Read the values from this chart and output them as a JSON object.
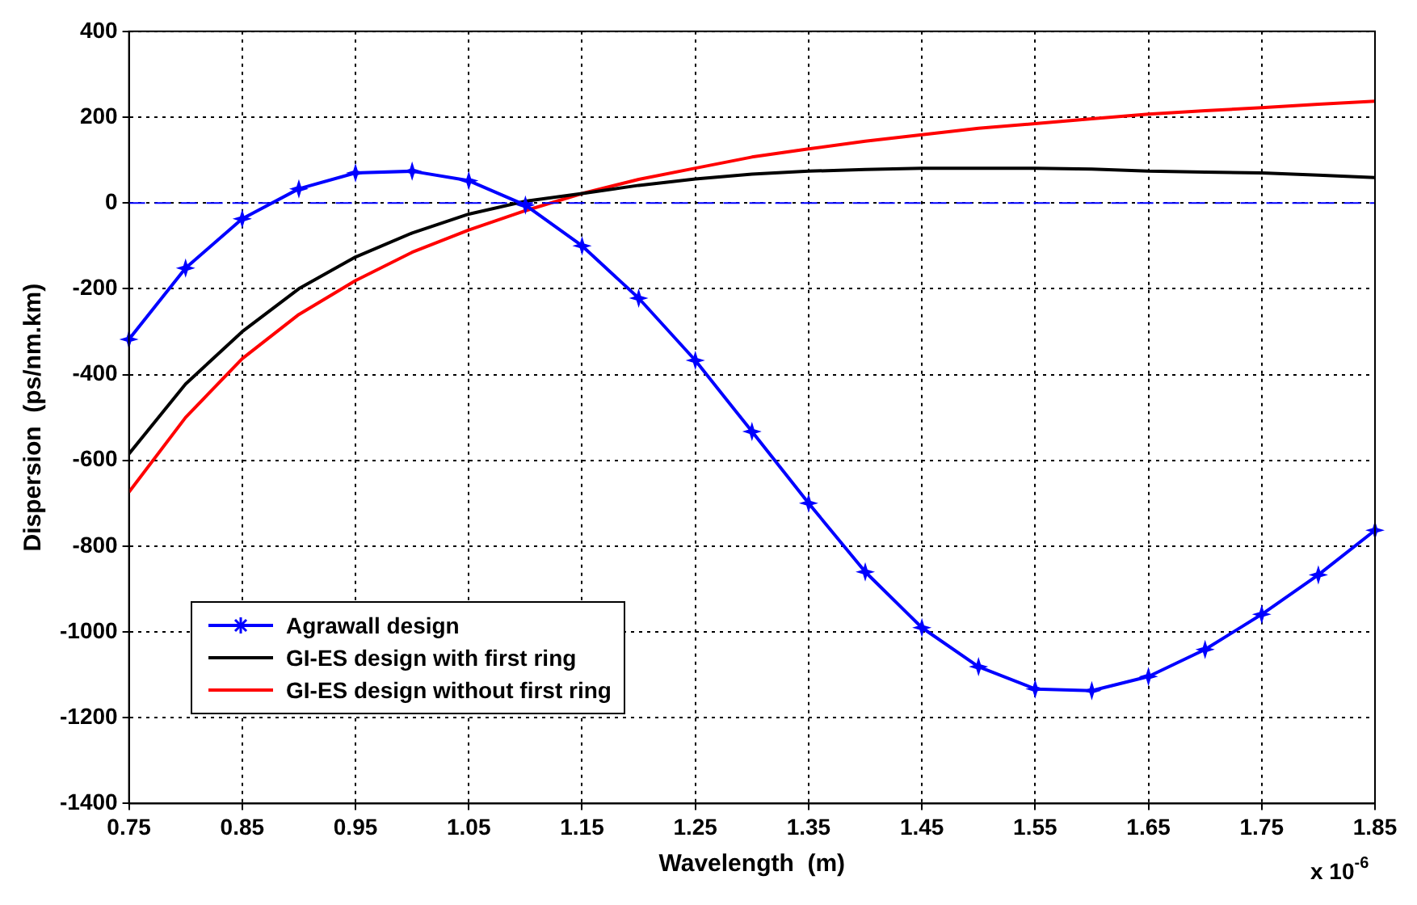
{
  "chart_data": {
    "type": "line",
    "xlabel": "Wavelength  (m)",
    "ylabel": "Dispersion  (ps/nm.km)",
    "x": [
      0.75,
      0.8,
      0.85,
      0.9,
      0.95,
      1.0,
      1.05,
      1.1,
      1.15,
      1.2,
      1.25,
      1.3,
      1.35,
      1.4,
      1.45,
      1.5,
      1.55,
      1.6,
      1.65,
      1.7,
      1.75,
      1.8,
      1.85
    ],
    "series": [
      {
        "name": "Agrawall design",
        "color": "#0000ff",
        "marker": "star",
        "values": [
          -318,
          -152,
          -37,
          33,
          70,
          74,
          52,
          -5,
          -100,
          -222,
          -367,
          -533,
          -700,
          -860,
          -990,
          -1081,
          -1133,
          -1137,
          -1104,
          -1041,
          -959,
          -867,
          -763
        ]
      },
      {
        "name": " GI-ES design with first ring",
        "color": "#000000",
        "marker": "none",
        "values": [
          -585,
          -422,
          -300,
          -200,
          -126,
          -70,
          -26,
          4,
          22,
          41,
          56,
          67,
          74,
          78,
          81,
          81,
          81,
          79,
          74,
          72,
          70,
          65,
          59
        ]
      },
      {
        "name": "GI-ES design without first ring",
        "color": "#ff0000",
        "marker": "none",
        "values": [
          -674,
          -500,
          -363,
          -260,
          -181,
          -115,
          -63,
          -18,
          22,
          55,
          81,
          107,
          126,
          144,
          159,
          174,
          185,
          196,
          207,
          215,
          222,
          230,
          237
        ]
      }
    ],
    "xlim": [
      0.75,
      1.85
    ],
    "xticks": [
      0.75,
      0.85,
      0.95,
      1.05,
      1.15,
      1.25,
      1.35,
      1.45,
      1.55,
      1.65,
      1.75,
      1.85
    ],
    "ylim": [
      -1400,
      400
    ],
    "yticks": [
      -1400,
      -1200,
      -1000,
      -800,
      -600,
      -400,
      -200,
      0,
      200,
      400
    ],
    "ref_lines": [
      {
        "axis": "y",
        "value": 0,
        "color": "#0000ff",
        "line_style": "dashed"
      }
    ],
    "annotations": [
      "x 10$^{-6}$"
    ],
    "grid": true,
    "legend": "bottom left",
    "line_style": "solid"
  }
}
